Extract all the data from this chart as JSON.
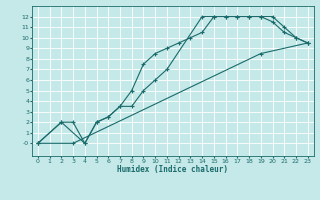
{
  "title": "",
  "xlabel": "Humidex (Indice chaleur)",
  "ylabel": "",
  "bg_color": "#c5e8e8",
  "grid_color": "#ffffff",
  "line_color": "#1a6b6b",
  "xlim": [
    -0.5,
    23.5
  ],
  "ylim": [
    -1.2,
    13
  ],
  "xticks": [
    0,
    1,
    2,
    3,
    4,
    5,
    6,
    7,
    8,
    9,
    10,
    11,
    12,
    13,
    14,
    15,
    16,
    17,
    18,
    19,
    20,
    21,
    22,
    23
  ],
  "yticks": [
    0,
    1,
    2,
    3,
    4,
    5,
    6,
    7,
    8,
    9,
    10,
    11,
    12
  ],
  "series": [
    {
      "x": [
        0,
        2,
        4,
        5,
        6,
        7,
        8,
        9,
        10,
        11,
        12,
        13,
        14,
        15,
        16,
        17,
        18,
        19,
        20,
        21,
        22,
        23
      ],
      "y": [
        0,
        2,
        0,
        2,
        2.5,
        3.5,
        5,
        7.5,
        8.5,
        9,
        9.5,
        10,
        10.5,
        12,
        12,
        12,
        12,
        12,
        12,
        11,
        10,
        9.5
      ]
    },
    {
      "x": [
        0,
        2,
        3,
        4,
        5,
        6,
        7,
        8,
        9,
        10,
        11,
        14,
        15,
        16,
        17,
        18,
        19,
        20,
        21,
        22,
        23
      ],
      "y": [
        0,
        2,
        2,
        0,
        2,
        2.5,
        3.5,
        3.5,
        5,
        6,
        7,
        12,
        12,
        12,
        12,
        12,
        12,
        11.5,
        10.5,
        10,
        9.5
      ]
    },
    {
      "x": [
        0,
        3,
        19,
        23
      ],
      "y": [
        0,
        0,
        8.5,
        9.5
      ]
    }
  ],
  "ytick_label_minus0": "-0"
}
